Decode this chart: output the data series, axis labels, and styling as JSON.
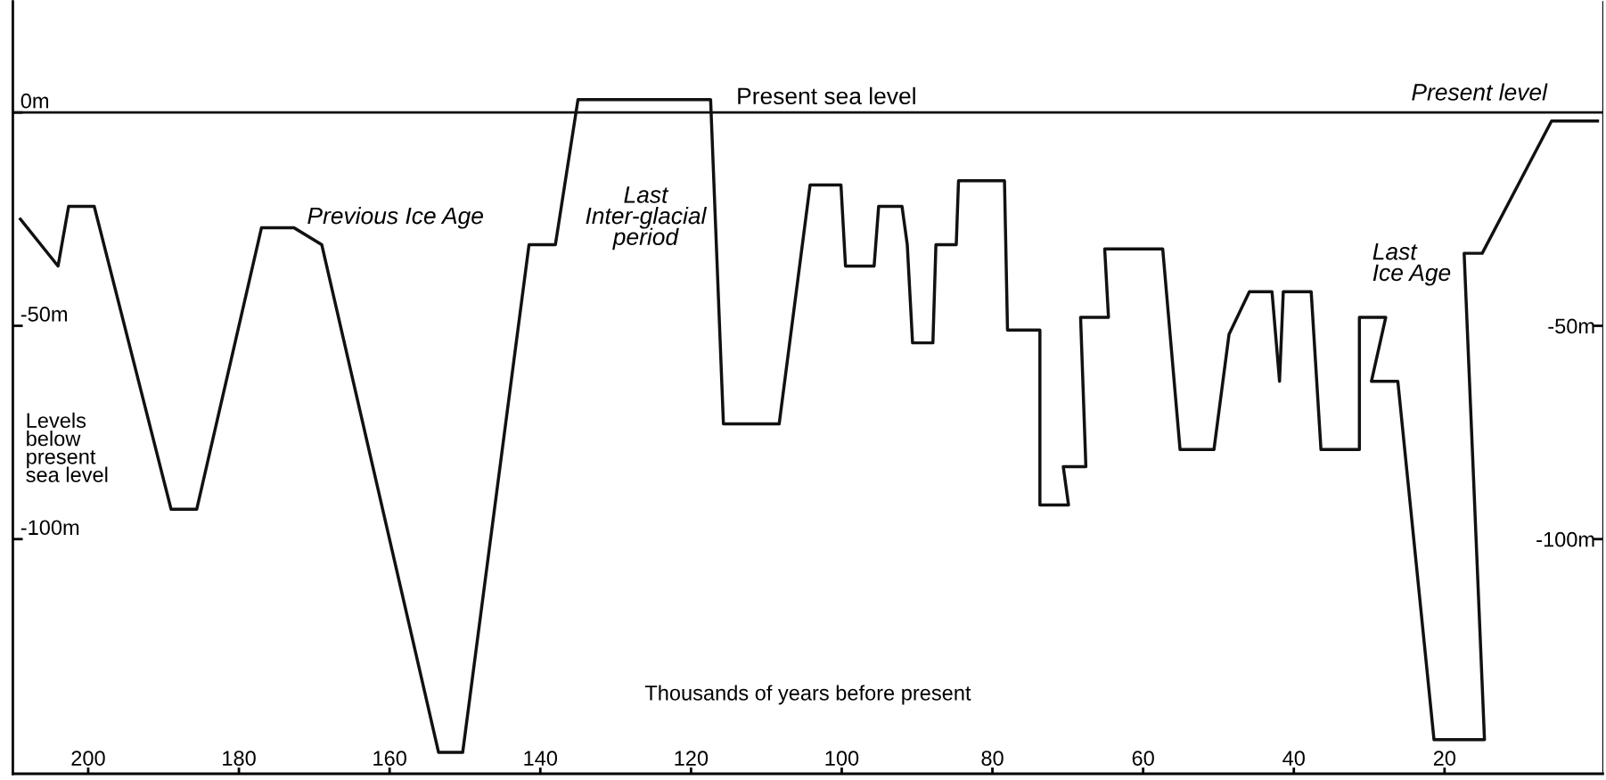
{
  "chart_data": {
    "type": "line",
    "xlabel": "Thousands of years before present",
    "ylabel": "Levels\nbelow\npresent\nsea level",
    "x": [
      209,
      204,
      202.6,
      199.2,
      189,
      185.6,
      177,
      172.7,
      169,
      153.5,
      150.3,
      141.5,
      138,
      135,
      117.4,
      115.7,
      108.3,
      104.2,
      100.1,
      99.5,
      95.7,
      95.1,
      92,
      91.3,
      90.6,
      87.9,
      87.5,
      84.8,
      84.5,
      78.4,
      78,
      73.7,
      73.7,
      69.9,
      70.6,
      67.6,
      68.3,
      64.6,
      65.1,
      57.4,
      55.1,
      50.6,
      48.6,
      45.9,
      42.9,
      41.9,
      41.4,
      37.7,
      36.4,
      31.3,
      31.3,
      27.8,
      29.7,
      26.2,
      21.4,
      14.7,
      17.4,
      15,
      5.8,
      -0.3
    ],
    "series": [
      {
        "color": "#111111",
        "values": [
          -25,
          -36,
          -22,
          -22,
          -93,
          -93,
          -27,
          -27,
          -31,
          -150,
          -150,
          -31,
          -31,
          3,
          3,
          -73,
          -73,
          -17,
          -17,
          -36,
          -36,
          -22,
          -22,
          -31,
          -54,
          -54,
          -31,
          -31,
          -16,
          -16,
          -51,
          -51,
          -92,
          -92,
          -83,
          -83,
          -48,
          -48,
          -32,
          -32,
          -79,
          -79,
          -52,
          -42,
          -42,
          -63,
          -42,
          -42,
          -79,
          -79,
          -48,
          -48,
          -63,
          -63,
          -147,
          -147,
          -33,
          -33,
          -2,
          -2
        ]
      }
    ],
    "xlim": [
      210,
      -1
    ],
    "ylim": [
      -155,
      26
    ],
    "xticks": [
      200,
      180,
      160,
      140,
      120,
      100,
      80,
      60,
      40,
      20
    ],
    "yticks": [
      {
        "value": 0,
        "label": "0m"
      },
      {
        "value": -50,
        "label": "-50m"
      },
      {
        "value": -100,
        "label": "-100m"
      }
    ],
    "y2lim": [
      -155,
      26
    ],
    "y2ticks": [
      {
        "value": -50,
        "label": "-50m"
      },
      {
        "value": -100,
        "label": "-100m"
      }
    ],
    "ref_lines": [
      {
        "axis": "y",
        "value": 0,
        "color": "#111111"
      }
    ],
    "annotations": [
      "Present sea level",
      "Present level",
      "Previous Ice Age",
      "Last\nInter-glacial\nperiod",
      "Last\nIce Age"
    ],
    "marker": "none",
    "line_style": "solid",
    "grid": false,
    "legend": false
  }
}
